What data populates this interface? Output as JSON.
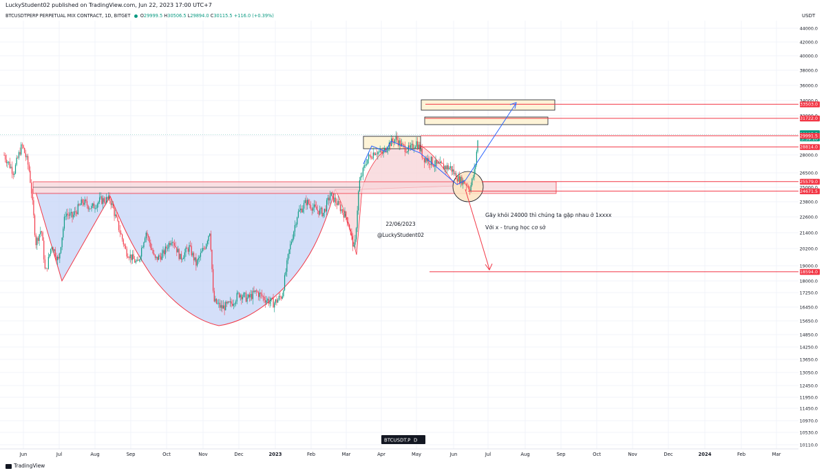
{
  "header": {
    "published_line": "LuckyStudent02 published on TradingView.com, Jun 22, 2023 17:00 UTC+7",
    "symbol_line": "BTCUSDTPERP PERPETUAL MIX CONTRACT, 1D, BITGET",
    "ohlc": {
      "open_label": "O",
      "open": "29999.5",
      "high_label": "H",
      "high": "30506.5",
      "low_label": "L",
      "low": "29894.0",
      "close_label": "C",
      "close": "30115.5",
      "change": "+116.0 (+0.39%)"
    },
    "currency": "USDT"
  },
  "footer": {
    "brand": "TradingView"
  },
  "chart_data": {
    "type": "candlestick",
    "price_axis": {
      "ticks": [
        "44000.0",
        "42000.0",
        "40000.0",
        "38000.0",
        "36000.0",
        "34000.0",
        "32000.0",
        "30000.0",
        "28000.0",
        "26500.0",
        "25000.0",
        "23800.0",
        "22600.0",
        "21400.0",
        "20200.0",
        "19000.0",
        "18000.0",
        "17250.0",
        "16450.0",
        "15650.0",
        "14850.0",
        "14250.0",
        "13650.0",
        "13050.0",
        "12450.0",
        "11950.0",
        "11450.0",
        "10970.0",
        "10530.0",
        "10110.0"
      ],
      "scale": "log",
      "range": [
        10000,
        45000
      ]
    },
    "time_axis": {
      "ticks": [
        "Jun",
        "Jul",
        "Aug",
        "Sep",
        "Oct",
        "Nov",
        "Dec",
        "2023",
        "Feb",
        "Mar",
        "Apr",
        "May",
        "Jun",
        "Jul",
        "Aug",
        "Sep",
        "Oct",
        "Nov",
        "Dec",
        "2024",
        "Feb",
        "Mar"
      ]
    },
    "price_labels": [
      {
        "value": "33503.0",
        "color": "#f23645"
      },
      {
        "value": "31722.0",
        "color": "#f23645"
      },
      {
        "value": "30115.5",
        "countdown": "13:59:10",
        "color": "#089981"
      },
      {
        "value": "29991.5",
        "color": "#f23645"
      },
      {
        "value": "28814.0",
        "color": "#f23645"
      },
      {
        "value": "25579.0",
        "color": "#f23645"
      },
      {
        "value": "24671.5",
        "color": "#f23645"
      },
      {
        "value": "18594.0",
        "color": "#f23645"
      }
    ],
    "annotations": {
      "date_text": "22/06/2023",
      "author_text": "@LuckyStudent02",
      "note_line1": "Gãy khỏi 24000 thì chúng ta gặp nhau ở 1xxxx",
      "note_line2": "Với x - trung học cơ sở"
    },
    "bottom_badge": {
      "symbol": "BTCUSDT.P",
      "letter": "D"
    },
    "colors": {
      "up": "#089981",
      "down": "#f23645",
      "cup_fill": "#c6d4f7",
      "zone_fill": "#f7d6d9",
      "box_fill": "#fdf3d7",
      "arrow_blue": "#2962ff"
    }
  }
}
